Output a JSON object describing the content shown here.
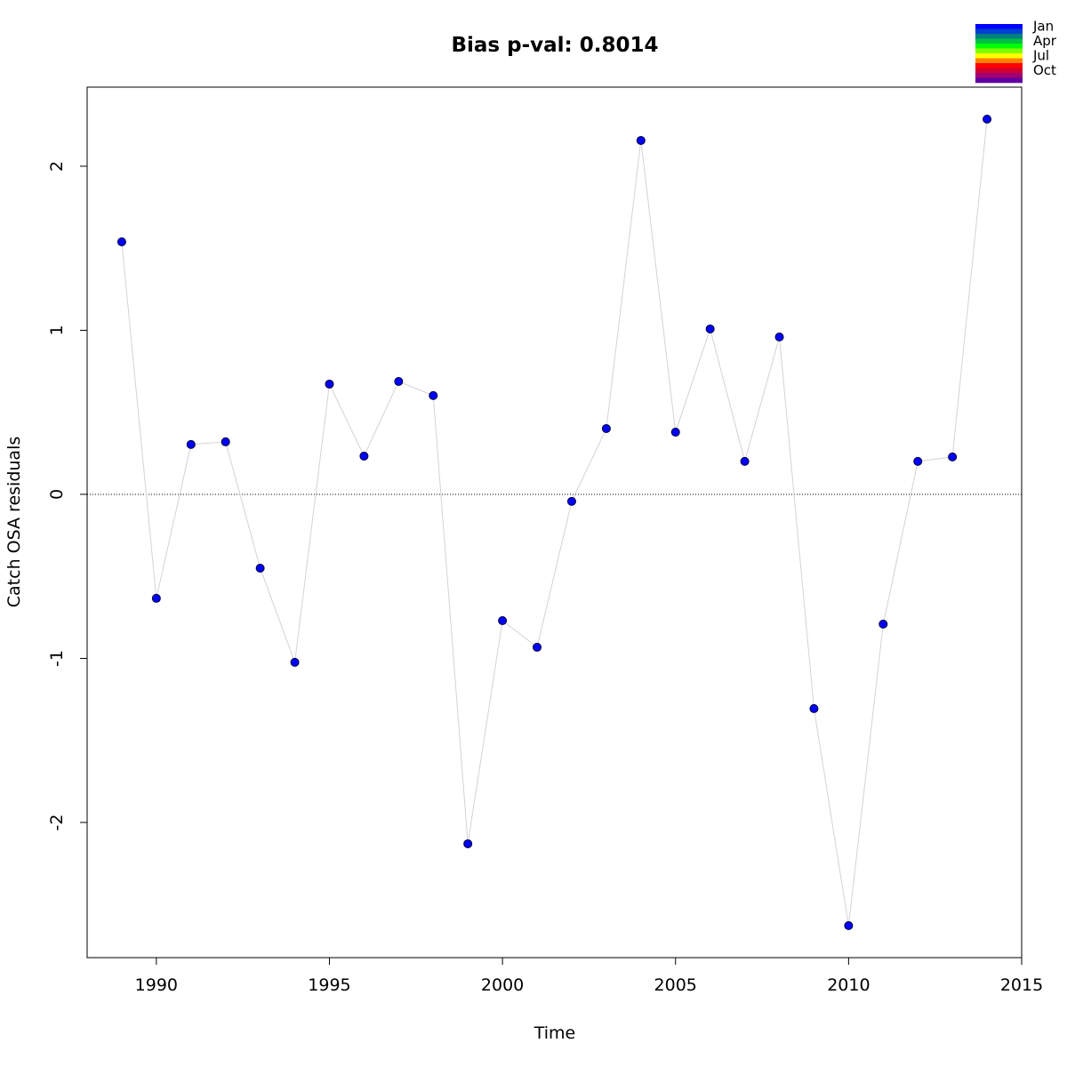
{
  "chart_data": {
    "type": "line",
    "title": "Bias p-val: 0.8014",
    "title_color": "#228b22",
    "x_label": "Time",
    "y_label": "Catch OSA residuals",
    "x": [
      1989,
      1990,
      1991,
      1992,
      1993,
      1994,
      1995,
      1996,
      1997,
      1998,
      1999,
      2000,
      2001,
      2002,
      2003,
      2004,
      2005,
      2006,
      2007,
      2008,
      2009,
      2010,
      2011,
      2012,
      2013,
      2014
    ],
    "series": [
      {
        "color": "#0000ff",
        "line_color": "#d3d3d3",
        "values": [
          1.539,
          -0.634,
          0.304,
          0.32,
          -0.45,
          -1.024,
          0.672,
          0.233,
          0.688,
          0.602,
          -2.13,
          -0.77,
          -0.932,
          -0.043,
          0.401,
          2.157,
          0.379,
          1.008,
          0.201,
          0.959,
          -1.306,
          -2.629,
          -0.791,
          0.201,
          0.228,
          2.287
        ]
      }
    ],
    "xlim": [
      1988,
      2015
    ],
    "xticks": [
      1990,
      1995,
      2000,
      2005,
      2010,
      2015
    ],
    "ylim": [
      -2.824,
      2.482
    ],
    "yticks": [
      -2,
      -1,
      0,
      1,
      2
    ],
    "hline": 0,
    "month_legend": {
      "months": [
        "Jan",
        null,
        null,
        "Apr",
        null,
        null,
        "Jul",
        null,
        null,
        "Oct",
        null,
        null
      ],
      "colors": [
        "#0000FF",
        "#0040D0",
        "#008080",
        "#00C040",
        "#00FF00",
        "#80FF00",
        "#FFFF00",
        "#FF8000",
        "#FF0000",
        "#D00030",
        "#A00070",
        "#6000A0"
      ]
    }
  }
}
